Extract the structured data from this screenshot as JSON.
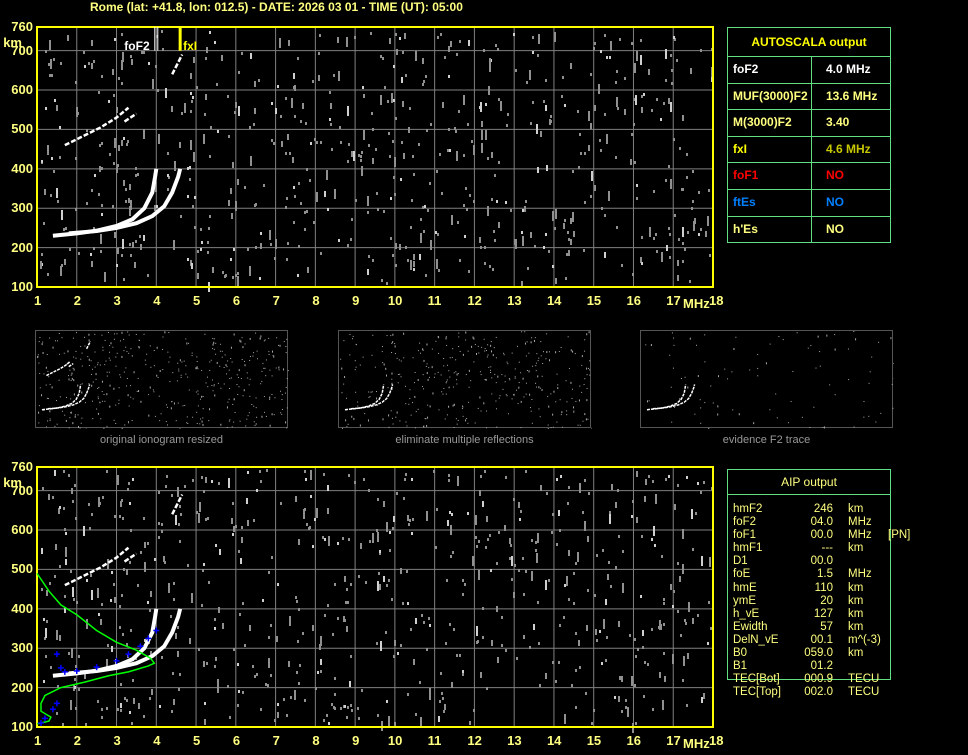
{
  "header": {
    "title": "Rome (lat: +41.8, lon: 012.5) - DATE: 2026 03 01 - TIME (UT): 05:00"
  },
  "chart_data": [
    {
      "type": "scatter",
      "name_hint": "top-ionogram",
      "xlabel": "MHz",
      "ylabel": "km",
      "xlim": [
        1,
        18
      ],
      "ylim": [
        100,
        760
      ],
      "grid": true,
      "xticks": [
        "1",
        "2",
        "3",
        "4",
        "5",
        "6",
        "7",
        "8",
        "9",
        "10",
        "11",
        "12",
        "13",
        "14",
        "15",
        "16",
        "17",
        "18"
      ],
      "yticks": [
        "760",
        "700",
        "600",
        "500",
        "400",
        "300",
        "200",
        "100"
      ],
      "markers": [
        {
          "label": "foF2",
          "freq": 4.0,
          "color": "#ffffff"
        },
        {
          "label": "fxI",
          "freq": 4.6,
          "color": "#ffff00"
        }
      ],
      "traces": [
        {
          "kind": "o-trace",
          "color": "#ffffff",
          "points": [
            [
              1.4,
              230
            ],
            [
              2.0,
              236
            ],
            [
              2.5,
              243
            ],
            [
              3.0,
              255
            ],
            [
              3.4,
              272
            ],
            [
              3.7,
              300
            ],
            [
              3.9,
              340
            ],
            [
              3.97,
              380
            ],
            [
              4.0,
              400
            ]
          ]
        },
        {
          "kind": "x-trace",
          "color": "#ffffff",
          "points": [
            [
              1.8,
              236
            ],
            [
              2.5,
              242
            ],
            [
              3.0,
              250
            ],
            [
              3.5,
              262
            ],
            [
              3.9,
              280
            ],
            [
              4.2,
              305
            ],
            [
              4.4,
              340
            ],
            [
              4.55,
              380
            ],
            [
              4.6,
              400
            ]
          ]
        },
        {
          "kind": "multiple-reflection",
          "color": "#ffffff",
          "points": [
            [
              1.7,
              460
            ],
            [
              2.1,
              480
            ],
            [
              2.6,
              505
            ],
            [
              3.0,
              530
            ],
            [
              3.3,
              555
            ]
          ]
        },
        {
          "kind": "multiple-reflection",
          "color": "#ffffff",
          "points": [
            [
              3.2,
              520
            ],
            [
              3.5,
              540
            ]
          ]
        },
        {
          "kind": "echo",
          "color": "#ffffff",
          "points": [
            [
              4.4,
              640
            ],
            [
              4.55,
              670
            ],
            [
              4.65,
              690
            ]
          ]
        }
      ]
    },
    {
      "type": "scatter",
      "name_hint": "bottom-ionogram",
      "xlabel": "MHz",
      "ylabel": "km",
      "xlim": [
        1,
        18
      ],
      "ylim": [
        100,
        760
      ],
      "grid": true,
      "xticks": [
        "1",
        "2",
        "3",
        "4",
        "5",
        "6",
        "7",
        "8",
        "9",
        "10",
        "11",
        "12",
        "13",
        "14",
        "15",
        "16",
        "17",
        "18"
      ],
      "yticks": [
        "760",
        "700",
        "600",
        "500",
        "400",
        "300",
        "200",
        "100"
      ],
      "profile": {
        "color": "#00ff00",
        "points": [
          [
            1.0,
            490
          ],
          [
            1.3,
            445
          ],
          [
            1.6,
            410
          ],
          [
            2.0,
            385
          ],
          [
            2.5,
            345
          ],
          [
            3.0,
            315
          ],
          [
            3.5,
            295
          ],
          [
            3.85,
            275
          ],
          [
            3.95,
            262
          ],
          [
            3.8,
            255
          ],
          [
            3.3,
            240
          ],
          [
            2.8,
            230
          ],
          [
            2.2,
            214
          ],
          [
            1.6,
            200
          ],
          [
            1.2,
            180
          ],
          [
            1.1,
            160
          ],
          [
            1.1,
            140
          ],
          [
            1.35,
            125
          ],
          [
            1.3,
            115
          ],
          [
            1.0,
            108
          ]
        ]
      },
      "aip_points": {
        "color": "#0000ff",
        "points": [
          [
            1.5,
            285
          ],
          [
            1.6,
            250
          ],
          [
            1.7,
            240
          ],
          [
            2.0,
            242
          ],
          [
            2.5,
            252
          ],
          [
            3.0,
            268
          ],
          [
            3.3,
            285
          ],
          [
            3.6,
            305
          ],
          [
            3.8,
            325
          ],
          [
            4.0,
            345
          ],
          [
            1.5,
            160
          ],
          [
            1.4,
            145
          ],
          [
            1.2,
            122
          ],
          [
            1.1,
            110
          ]
        ]
      }
    }
  ],
  "autoscala": {
    "title": "AUTOSCALA output",
    "rows": [
      {
        "label": "foF2",
        "value": "4.0 MHz",
        "color": "#ffffff",
        "vcolor": "#ffffff"
      },
      {
        "label": "MUF(3000)F2",
        "value": "13.6 MHz",
        "color": "#ffff80",
        "vcolor": "#ffff80"
      },
      {
        "label": "M(3000)F2",
        "value": "3.40",
        "color": "#ffff80",
        "vcolor": "#ffff80"
      },
      {
        "label": "fxI",
        "value": "4.6 MHz",
        "color": "#ffff00",
        "vcolor": "#c8c800"
      },
      {
        "label": "foF1",
        "value": "NO",
        "color": "#ff0000",
        "vcolor": "#ff0000"
      },
      {
        "label": "ftEs",
        "value": "NO",
        "color": "#0080ff",
        "vcolor": "#0080ff"
      },
      {
        "label": "h'Es",
        "value": "NO",
        "color": "#ffff80",
        "vcolor": "#ffff80"
      }
    ]
  },
  "aip": {
    "title": "AIP output",
    "rows": [
      {
        "k": "hmF2",
        "v": "246",
        "u": "km",
        "x": ""
      },
      {
        "k": "foF2",
        "v": "04.0",
        "u": "MHz",
        "x": ""
      },
      {
        "k": "foF1",
        "v": "00.0",
        "u": "MHz",
        "x": "[PN]"
      },
      {
        "k": "hmF1",
        "v": "---",
        "u": "km",
        "x": ""
      },
      {
        "k": "D1",
        "v": "00.0",
        "u": "",
        "x": ""
      },
      {
        "k": "foE",
        "v": "1.5",
        "u": "MHz",
        "x": ""
      },
      {
        "k": "hmE",
        "v": "110",
        "u": "km",
        "x": ""
      },
      {
        "k": "ymE",
        "v": "20",
        "u": "km",
        "x": ""
      },
      {
        "k": "h_vE",
        "v": "127",
        "u": "km",
        "x": ""
      },
      {
        "k": "Ewidth",
        "v": "57",
        "u": "km",
        "x": ""
      },
      {
        "k": "DelN_vE",
        "v": "00.1",
        "u": "m^(-3)",
        "x": ""
      },
      {
        "k": "B0",
        "v": "059.0",
        "u": "km",
        "x": ""
      },
      {
        "k": "B1",
        "v": "01.2",
        "u": "",
        "x": ""
      },
      {
        "k": "TEC[Bot]",
        "v": "000.9",
        "u": "TECU",
        "x": ""
      },
      {
        "k": "TEC[Top]",
        "v": "002.0",
        "u": "TECU",
        "x": ""
      }
    ]
  },
  "thumbnails": [
    {
      "caption": "original ionogram resized"
    },
    {
      "caption": "eliminate multiple reflections"
    },
    {
      "caption": "evidence F2 trace"
    }
  ],
  "colors": {
    "axis": "#ffff00",
    "grid": "#808080",
    "noise": "#a0a0a0",
    "border": "#60e080"
  }
}
